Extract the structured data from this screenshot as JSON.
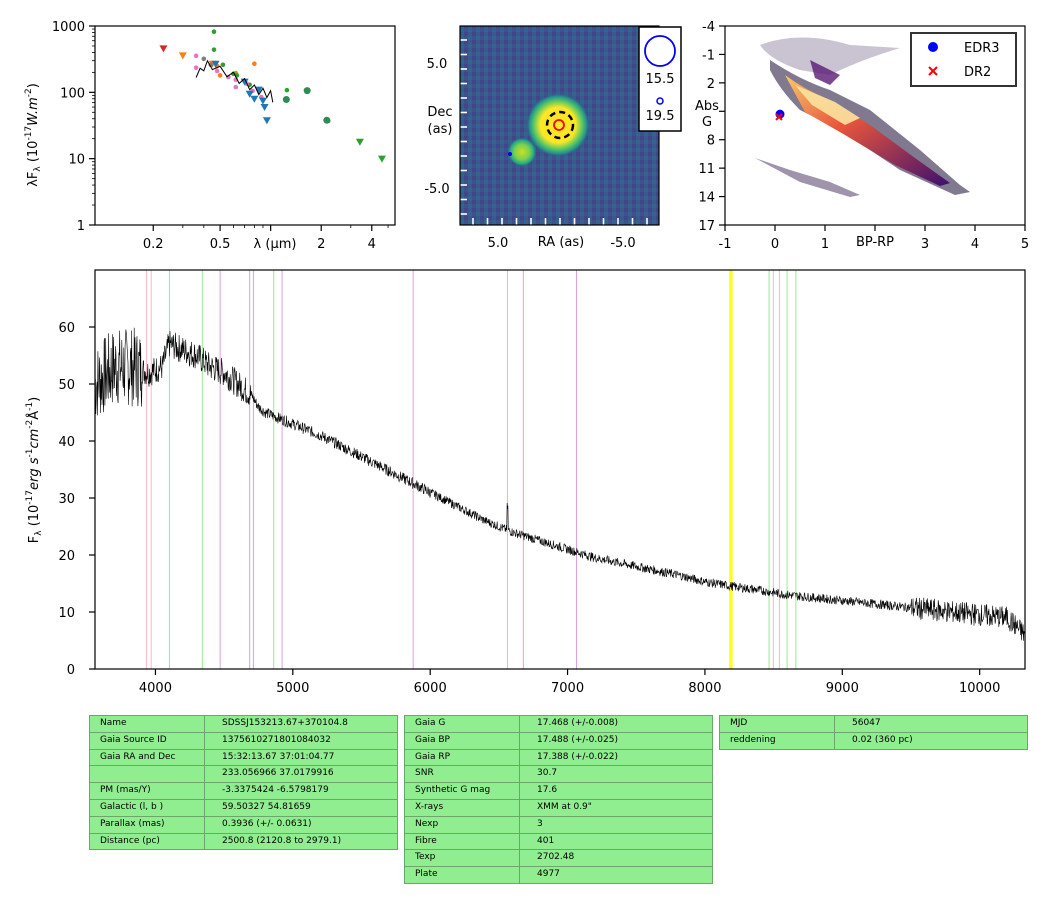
{
  "sed": {
    "ylabel": "λF_λ (10^-17 W.m^-2)",
    "xlabel": "λ (µm)",
    "yticks": [
      "1",
      "10",
      "100",
      "1000"
    ],
    "xticks": [
      "0.2",
      "0.5",
      "1",
      "2",
      "4"
    ],
    "chart_data": {
      "type": "scatter",
      "x_scale": "log",
      "y_scale": "log",
      "xlim": [
        0.09,
        5.5
      ],
      "ylim": [
        1,
        1000
      ],
      "series": [
        {
          "color": "#d62728",
          "marker": "triangle-down",
          "points": [
            [
              0.23,
              460
            ]
          ]
        },
        {
          "color": "#ff7f0e",
          "marker": "triangle-down",
          "points": [
            [
              0.3,
              360
            ],
            [
              0.45,
              270
            ]
          ]
        },
        {
          "color": "#ff7f0e",
          "marker": "dot",
          "points": [
            [
              0.48,
              250
            ],
            [
              0.62,
              195
            ],
            [
              0.8,
              270
            ],
            [
              0.5,
              180
            ]
          ]
        },
        {
          "color": "#2ca02c",
          "marker": "dot",
          "points": [
            [
              0.46,
              820
            ],
            [
              0.46,
              440
            ],
            [
              0.52,
              260
            ],
            [
              0.6,
              190
            ],
            [
              0.63,
              180
            ],
            [
              0.75,
              130
            ],
            [
              1.25,
              108
            ],
            [
              1.25,
              80
            ],
            [
              1.65,
              105
            ],
            [
              2.2,
              37
            ]
          ]
        },
        {
          "color": "#2ca02c",
          "marker": "triangle-down",
          "points": [
            [
              3.4,
              18
            ],
            [
              4.6,
              10
            ]
          ]
        },
        {
          "color": "#e377c2",
          "marker": "dot",
          "points": [
            [
              0.36,
              355
            ],
            [
              0.36,
              235
            ],
            [
              0.48,
              210
            ],
            [
              0.56,
              170
            ],
            [
              0.62,
              155
            ],
            [
              0.62,
              120
            ],
            [
              0.72,
              135
            ],
            [
              0.78,
              105
            ],
            [
              0.88,
              85
            ]
          ]
        },
        {
          "color": "#7f7f7f",
          "marker": "dot",
          "points": [
            [
              0.4,
              320
            ],
            [
              0.44,
              260
            ]
          ]
        },
        {
          "color": "#1f77b4",
          "marker": "triangle-down",
          "points": [
            [
              0.47,
              270
            ],
            [
              0.7,
              145
            ],
            [
              0.75,
              95
            ],
            [
              0.8,
              80
            ],
            [
              0.85,
              110
            ],
            [
              0.9,
              75
            ],
            [
              0.92,
              60
            ],
            [
              0.95,
              38
            ]
          ]
        },
        {
          "color": "#2e8b57",
          "marker": "dot-large",
          "points": [
            [
              1.24,
              78
            ],
            [
              1.65,
              106
            ],
            [
              2.16,
              38
            ]
          ]
        },
        {
          "color": "#000000",
          "marker": "spectrum",
          "points": [
            [
              0.36,
              190
            ],
            [
              0.38,
              200
            ],
            [
              0.4,
              240
            ],
            [
              0.42,
              260
            ],
            [
              0.45,
              250
            ],
            [
              0.5,
              215
            ],
            [
              0.55,
              195
            ],
            [
              0.6,
              175
            ],
            [
              0.65,
              155
            ],
            [
              0.7,
              140
            ],
            [
              0.75,
              125
            ],
            [
              0.8,
              112
            ],
            [
              0.85,
              105
            ],
            [
              0.9,
              100
            ],
            [
              0.95,
              95
            ],
            [
              1.0,
              92
            ],
            [
              1.03,
              80
            ]
          ]
        }
      ]
    }
  },
  "img": {
    "ylabel_lines": [
      "Dec",
      "(as)"
    ],
    "xlabel": "RA (as)",
    "yticks": [
      "5.0",
      "-5.0"
    ],
    "xticks": [
      "5.0",
      "-5.0"
    ],
    "legend": [
      "15.5",
      "19.5"
    ]
  },
  "hrd": {
    "ylabel_lines": [
      "Abs",
      "G"
    ],
    "xlabel": "BP-RP",
    "yticks": [
      "-4",
      "-1",
      "2",
      "5",
      "8",
      "11",
      "14",
      "17"
    ],
    "xticks": [
      "-1",
      "0",
      "1",
      "2",
      "3",
      "4",
      "5"
    ],
    "legend": [
      "EDR3",
      "DR2"
    ],
    "chart_data": {
      "type": "scatter",
      "xlim": [
        -1,
        5
      ],
      "ylim": [
        17,
        -4
      ],
      "series": [
        {
          "name": "EDR3",
          "color": "#0000ff",
          "marker": "circle",
          "points": [
            [
              0.1,
              5.3
            ]
          ]
        },
        {
          "name": "DR2",
          "color": "#ff0000",
          "marker": "x",
          "points": [
            [
              0.08,
              5.6
            ]
          ]
        }
      ]
    }
  },
  "spec": {
    "ylabel": "F_λ (10^-17 erg s^-1 cm^-2 Å^-1)",
    "yticks": [
      "0",
      "10",
      "20",
      "30",
      "40",
      "50",
      "60"
    ],
    "xticks": [
      "4000",
      "5000",
      "6000",
      "7000",
      "8000",
      "9000",
      "10000"
    ],
    "chart_data": {
      "type": "line",
      "xlim": [
        3560,
        10330
      ],
      "ylim": [
        0,
        70
      ],
      "series": [
        {
          "color": "#000000",
          "points": [
            [
              3560,
              50
            ],
            [
              3700,
              53
            ],
            [
              3850,
              53
            ],
            [
              3950,
              52
            ],
            [
              4050,
              53
            ],
            [
              4100,
              57
            ],
            [
              4200,
              56
            ],
            [
              4300,
              55
            ],
            [
              4400,
              53
            ],
            [
              4500,
              52
            ],
            [
              4600,
              50
            ],
            [
              4700,
              48
            ],
            [
              4750,
              46
            ],
            [
              4800,
              45
            ],
            [
              4900,
              44
            ],
            [
              5000,
              43
            ],
            [
              5200,
              41
            ],
            [
              5400,
              38.5
            ],
            [
              5600,
              36
            ],
            [
              5800,
              33.5
            ],
            [
              6000,
              31
            ],
            [
              6200,
              28.5
            ],
            [
              6400,
              26
            ],
            [
              6600,
              24
            ],
            [
              6800,
              22.5
            ],
            [
              7000,
              21
            ],
            [
              7200,
              19.5
            ],
            [
              7400,
              18.5
            ],
            [
              7600,
              17.5
            ],
            [
              7800,
              16.5
            ],
            [
              8000,
              15.3
            ],
            [
              8200,
              14.5
            ],
            [
              8400,
              13.8
            ],
            [
              8600,
              13
            ],
            [
              8800,
              12.5
            ],
            [
              9000,
              12
            ],
            [
              9200,
              11.5
            ],
            [
              9400,
              11
            ],
            [
              9600,
              10.5
            ],
            [
              9800,
              10
            ],
            [
              10000,
              9.5
            ],
            [
              10200,
              9
            ],
            [
              10330,
              6
            ]
          ]
        }
      ],
      "lines": [
        {
          "x": 3934,
          "color": "#ffb6c1"
        },
        {
          "x": 3969,
          "color": "#ffb6c1"
        },
        {
          "x": 4102,
          "color": "#90ee90"
        },
        {
          "x": 4341,
          "color": "#90ee90"
        },
        {
          "x": 4471,
          "color": "#dda0dd"
        },
        {
          "x": 4686,
          "color": "#dda0dd"
        },
        {
          "x": 4713,
          "color": "#dda0dd"
        },
        {
          "x": 4861,
          "color": "#90ee90"
        },
        {
          "x": 4922,
          "color": "#dda0dd"
        },
        {
          "x": 5876,
          "color": "#dda0dd"
        },
        {
          "x": 6563,
          "color": "#90ee90"
        },
        {
          "x": 6678,
          "color": "#dda0dd"
        },
        {
          "x": 7065,
          "color": "#dda0dd"
        },
        {
          "x": 8183,
          "color": "#ffff00"
        },
        {
          "x": 8195,
          "color": "#ffff00"
        },
        {
          "x": 8467,
          "color": "#90ee90"
        },
        {
          "x": 8498,
          "color": "#ffb6c1"
        },
        {
          "x": 8542,
          "color": "#ffb6c1"
        },
        {
          "x": 8598,
          "color": "#90ee90"
        },
        {
          "x": 8662,
          "color": "#90ee90"
        }
      ]
    }
  },
  "tables": {
    "t1": [
      [
        "Name",
        "SDSSJ153213.67+370104.8"
      ],
      [
        "Gaia Source ID",
        "1375610271801084032"
      ],
      [
        "Gaia RA and Dec",
        "15:32:13.67    37:01:04.77"
      ],
      [
        "",
        "233.056966    37.0179916"
      ],
      [
        "PM (mas/Y)",
        "-3.3375424    -6.5798179"
      ],
      [
        "Galactic (l, b )",
        "59.50327    54.81659"
      ],
      [
        "Parallax (mas)",
        "0.3936 (+/- 0.0631)"
      ],
      [
        "Distance (pc)",
        "2500.8 (2120.8 to 2979.1)"
      ]
    ],
    "t2": [
      [
        "Gaia G",
        "17.468 (+/-0.008)"
      ],
      [
        "Gaia BP",
        "17.488 (+/-0.025)"
      ],
      [
        "Gaia RP",
        "17.388 (+/-0.022)"
      ],
      [
        "SNR",
        "30.7"
      ],
      [
        "Synthetic G mag",
        "17.6"
      ],
      [
        "X-rays",
        "XMM at 0.9\""
      ],
      [
        "Nexp",
        "3"
      ],
      [
        "Fibre",
        "401"
      ],
      [
        "Texp",
        "2702.48"
      ],
      [
        "Plate",
        "4977"
      ]
    ],
    "t3": [
      [
        "MJD",
        "56047"
      ],
      [
        "reddening",
        "0.02 (360 pc)"
      ]
    ]
  }
}
